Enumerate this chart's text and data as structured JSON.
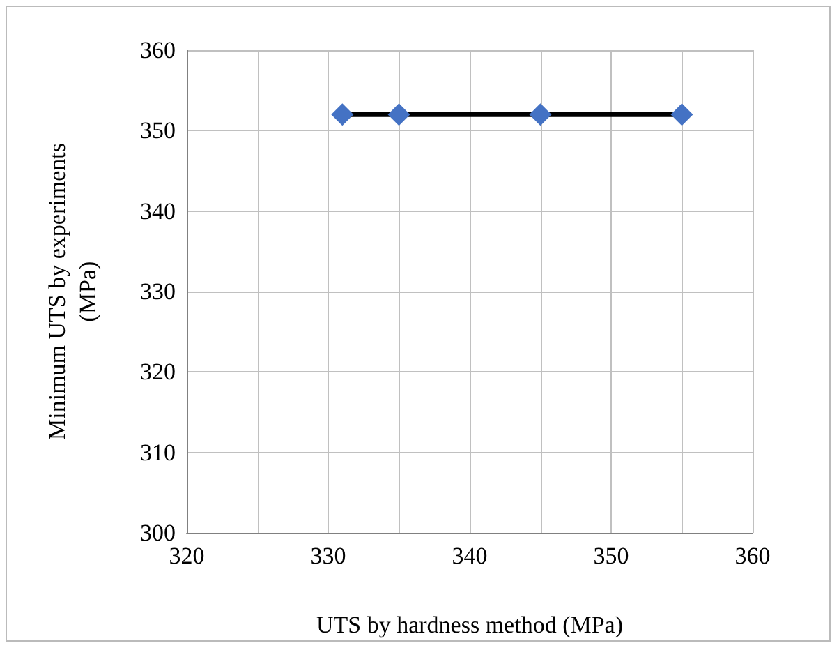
{
  "chart_data": {
    "type": "line",
    "xlabel": "UTS by hardness method (MPa)",
    "ylabel": "Minimum UTS by experiments\n(MPa)",
    "x": [
      331,
      335,
      345,
      355
    ],
    "series": [
      {
        "color": "#000000",
        "colors": [
          "#4472c4",
          "#4472c4",
          "#4472c4",
          "#4472c4"
        ],
        "values": [
          352,
          352,
          352,
          352
        ]
      }
    ],
    "marker": "diamond",
    "grid": true,
    "xlim": [
      320,
      360
    ],
    "xticks": [
      320,
      {
        "value": 325,
        "label": null
      },
      330,
      {
        "value": 335,
        "label": null
      },
      340,
      {
        "value": 345,
        "label": null
      },
      350,
      {
        "value": 355,
        "label": null
      },
      360
    ],
    "ylim": [
      300,
      360
    ],
    "yticks": [
      300,
      310,
      320,
      330,
      340,
      350,
      360
    ]
  }
}
